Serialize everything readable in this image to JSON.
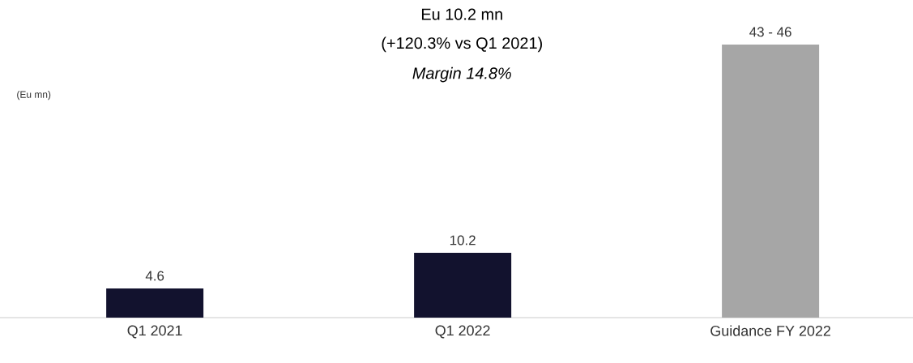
{
  "chart_data": {
    "type": "bar",
    "ylabel": "(Eu mn)",
    "categories": [
      "Q1 2021",
      "Q1 2022",
      "Guidance FY 2022"
    ],
    "values": [
      4.6,
      10.2,
      43
    ],
    "colors": [
      "#12122e",
      "#12122e",
      "#a6a6a6"
    ],
    "value_labels": [
      "4.6",
      "10.2",
      "43 - 46"
    ],
    "annotations": [
      "Eu 10.2 mn",
      "(+120.3% vs Q1 2021)",
      "Margin 14.8%"
    ]
  }
}
